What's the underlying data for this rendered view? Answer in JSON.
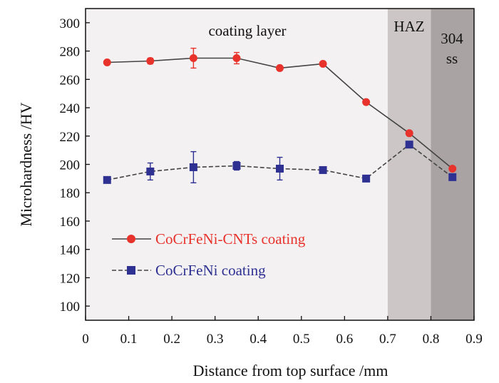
{
  "chart_data": {
    "type": "line",
    "title": "",
    "xlabel": "Distance from top surface /mm",
    "ylabel": "Microhardness /HV",
    "xlim": [
      0,
      0.9
    ],
    "ylim": [
      90,
      310
    ],
    "xticks": [
      "0",
      "0.1",
      "0.2",
      "0.3",
      "0.4",
      "0.5",
      "0.6",
      "0.7",
      "0.8",
      "0.9"
    ],
    "yticks": [
      "100",
      "120",
      "140",
      "160",
      "180",
      "200",
      "220",
      "240",
      "260",
      "280",
      "300"
    ],
    "grid": false,
    "legend_position": "lower-left",
    "regions": [
      {
        "label": "coating layer",
        "from": 0.0,
        "to": 0.7,
        "color": "#f3f1f1"
      },
      {
        "label": "HAZ",
        "from": 0.7,
        "to": 0.8,
        "color": "#ccc6c6"
      },
      {
        "label": "304",
        "label2": "ss",
        "from": 0.8,
        "to": 0.9,
        "color": "#aaa3a3"
      }
    ],
    "series": [
      {
        "name": "CoCrFeNi-CNTs coating",
        "color": "#e8332d",
        "line_color": "#444444",
        "line_style": "solid",
        "marker": "circle",
        "x": [
          0.05,
          0.15,
          0.25,
          0.35,
          0.45,
          0.55,
          0.65,
          0.75,
          0.85
        ],
        "values": [
          272,
          273,
          275,
          275,
          268,
          271,
          244,
          222,
          197
        ],
        "errors": [
          1,
          2,
          7,
          4,
          1,
          1,
          1,
          1,
          1
        ]
      },
      {
        "name": "CoCrFeNi coating",
        "color": "#2e3192",
        "line_color": "#444444",
        "line_style": "dashed",
        "marker": "square",
        "x": [
          0.05,
          0.15,
          0.25,
          0.35,
          0.45,
          0.55,
          0.65,
          0.75,
          0.85
        ],
        "values": [
          189,
          195,
          198,
          199,
          197,
          196,
          190,
          214,
          191
        ],
        "errors": [
          1,
          6,
          11,
          3,
          8,
          1,
          1,
          1,
          1
        ]
      }
    ]
  }
}
